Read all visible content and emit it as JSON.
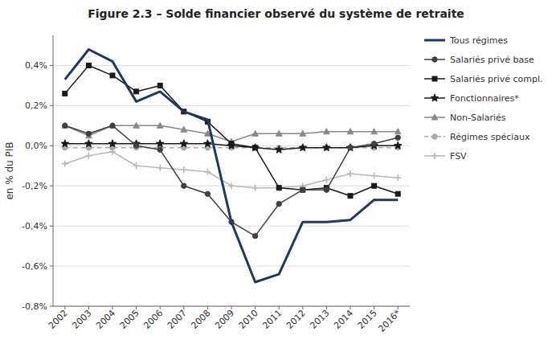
{
  "chart_data": {
    "type": "line",
    "title": "Figure 2.3 – Solde financier observé du système de retraite",
    "y_label": "en % du PIB",
    "categories": [
      "2002",
      "2003",
      "2004",
      "2005",
      "2006",
      "2007",
      "2008",
      "2009",
      "2010",
      "2011",
      "2012",
      "2013",
      "2014",
      "2015",
      "2016*"
    ],
    "series": [
      {
        "name": "Tous régimes",
        "color": "#1f3864",
        "marker": "none",
        "line_style": "solid",
        "values": [
          0.33,
          0.48,
          0.42,
          0.22,
          0.27,
          0.17,
          0.13,
          -0.38,
          -0.68,
          -0.64,
          -0.38,
          -0.38,
          -0.37,
          -0.27,
          -0.27
        ]
      },
      {
        "name": "Salariés  privé base",
        "color": "#404040",
        "marker": "circle",
        "line_style": "solid",
        "values": [
          0.1,
          0.06,
          0.1,
          0.0,
          -0.02,
          -0.2,
          -0.24,
          -0.38,
          -0.45,
          -0.29,
          -0.22,
          -0.22,
          -0.01,
          0.01,
          0.04
        ]
      },
      {
        "name": "Salariés  privé compl.",
        "color": "#1a1a1a",
        "marker": "square",
        "line_style": "solid",
        "values": [
          0.26,
          0.4,
          0.35,
          0.27,
          0.3,
          0.17,
          0.12,
          0.01,
          -0.01,
          -0.21,
          -0.22,
          -0.21,
          -0.25,
          -0.2,
          -0.24
        ]
      },
      {
        "name": "Fonctionnaires*",
        "color": "#1a1a1a",
        "marker": "star",
        "line_style": "solid",
        "values": [
          0.01,
          0.01,
          0.01,
          0.01,
          0.01,
          0.01,
          0.01,
          0.0,
          -0.01,
          -0.02,
          -0.01,
          -0.01,
          -0.01,
          0.0,
          0.0
        ]
      },
      {
        "name": "Non-Salariés",
        "color": "#888888",
        "marker": "triangle",
        "line_style": "solid",
        "values": [
          0.1,
          0.05,
          0.1,
          0.1,
          0.1,
          0.08,
          0.06,
          0.02,
          0.06,
          0.06,
          0.06,
          0.07,
          0.07,
          0.07,
          0.07
        ]
      },
      {
        "name": "Régimes spéciaux",
        "color": "#aaaaaa",
        "marker": "circle",
        "line_style": "dashed",
        "values": [
          -0.01,
          -0.01,
          -0.01,
          -0.01,
          -0.01,
          -0.01,
          -0.01,
          -0.01,
          -0.01,
          -0.01,
          -0.01,
          -0.01,
          -0.01,
          -0.01,
          -0.01
        ]
      },
      {
        "name": "FSV",
        "color": "#b8b8b8",
        "marker": "plus",
        "line_style": "solid",
        "values": [
          -0.09,
          -0.05,
          -0.03,
          -0.1,
          -0.11,
          -0.12,
          -0.13,
          -0.2,
          -0.21,
          -0.21,
          -0.2,
          -0.17,
          -0.14,
          -0.15,
          -0.16
        ]
      }
    ],
    "ylim": [
      -0.8,
      0.55
    ],
    "yticks": [
      {
        "value": -0.8,
        "label": "-0,8%"
      },
      {
        "value": -0.6,
        "label": "-0,6%"
      },
      {
        "value": -0.4,
        "label": "-0,4%"
      },
      {
        "value": -0.2,
        "label": "-0,2%"
      },
      {
        "value": 0.0,
        "label": "0,0%"
      },
      {
        "value": 0.2,
        "label": "0,2%"
      },
      {
        "value": 0.4,
        "label": "0,4%"
      }
    ],
    "grid": true,
    "legend": "right"
  }
}
